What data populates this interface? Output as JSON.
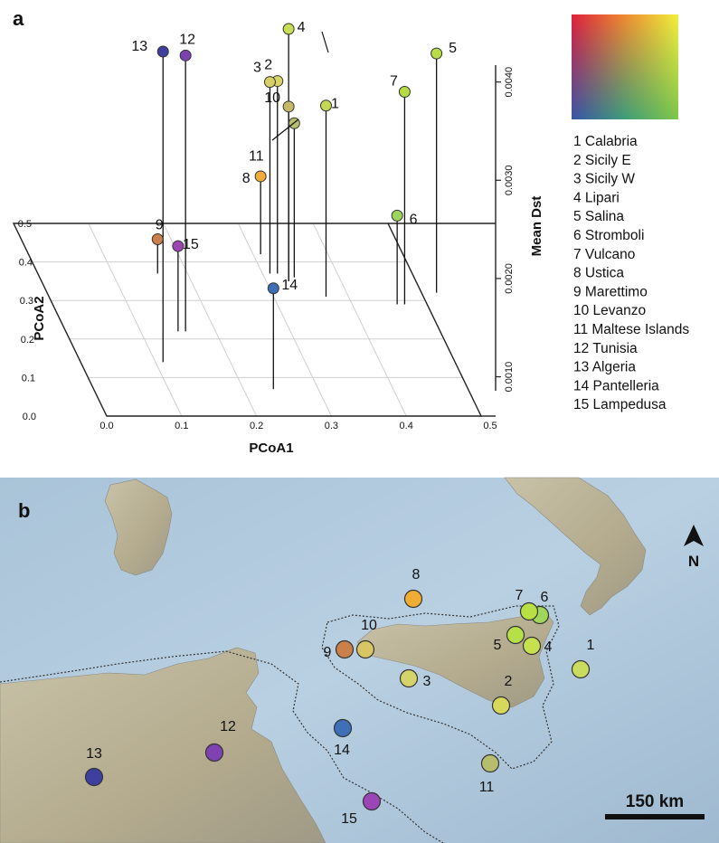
{
  "panel_a_label": "a",
  "panel_b_label": "b",
  "chart_data": {
    "type": "scatter",
    "projection": "3d",
    "xlabel": "PCoA1",
    "ylabel": "PCoA2",
    "zlabel": "Mean Dst",
    "xlim": [
      0.0,
      0.5
    ],
    "ylim": [
      0.0,
      0.5
    ],
    "zlim": [
      0.0006,
      0.0045
    ],
    "x_ticks": [
      "0.0",
      "0.1",
      "0.2",
      "0.3",
      "0.4",
      "0.5"
    ],
    "y_ticks": [
      "0.0",
      "0.1",
      "0.2",
      "0.3",
      "0.4",
      "0.5"
    ],
    "z_ticks": [
      "0.0010",
      "0.0020",
      "0.0030",
      "0.0040"
    ],
    "grid": true,
    "legend_position": "right",
    "points": [
      {
        "id": "1",
        "x": 0.37,
        "y": 0.31,
        "z": 0.00376,
        "color": "#c4d951"
      },
      {
        "id": "2",
        "x": 0.32,
        "y": 0.37,
        "z": 0.00401,
        "color": "#d8d467"
      },
      {
        "id": "3",
        "x": 0.31,
        "y": 0.37,
        "z": 0.004,
        "color": "#d4d066"
      },
      {
        "id": "4",
        "x": 0.33,
        "y": 0.35,
        "z": 0.00454,
        "color": "#c9dd55"
      },
      {
        "id": "5",
        "x": 0.52,
        "y": 0.32,
        "z": 0.00429,
        "color": "#b8dc4a"
      },
      {
        "id": "6",
        "x": 0.46,
        "y": 0.29,
        "z": 0.00264,
        "color": "#9fd45a"
      },
      {
        "id": "7",
        "x": 0.47,
        "y": 0.29,
        "z": 0.0039,
        "color": "#b4dc44"
      },
      {
        "id": "8",
        "x": 0.31,
        "y": 0.42,
        "z": 0.00304,
        "color": "#f0ad37"
      },
      {
        "id": "9",
        "x": 0.16,
        "y": 0.37,
        "z": 0.0024,
        "color": "#c9804c"
      },
      {
        "id": "10",
        "x": 0.33,
        "y": 0.35,
        "z": 0.00375,
        "color": "#c4b967"
      },
      {
        "id": "11",
        "x": 0.34,
        "y": 0.36,
        "z": 0.00358,
        "color": "#b6bf6c"
      },
      {
        "id": "12",
        "x": 0.16,
        "y": 0.22,
        "z": 0.00427,
        "color": "#7b42b0"
      },
      {
        "id": "13",
        "x": 0.11,
        "y": 0.14,
        "z": 0.00431,
        "color": "#3f3f9e"
      },
      {
        "id": "14",
        "x": 0.24,
        "y": 0.07,
        "z": 0.0019,
        "color": "#3d6fb5"
      },
      {
        "id": "15",
        "x": 0.15,
        "y": 0.22,
        "z": 0.00233,
        "color": "#9c45b5"
      }
    ],
    "legend": [
      "1 Calabria",
      "2 Sicily E",
      "3 Sicily W",
      "4 Lipari",
      "5 Salina",
      "6 Stromboli",
      "7 Vulcano",
      "8 Ustica",
      "9 Marettimo",
      "10 Levanzo",
      "11 Maltese Islands",
      "12 Tunisia",
      "13 Algeria",
      "14 Pantelleria",
      "15 Lampedusa"
    ]
  },
  "map": {
    "north_label": "N",
    "scale_label": "150 km",
    "sites": [
      {
        "id": "1",
        "color": "#c9dc5e"
      },
      {
        "id": "2",
        "color": "#d6d85c"
      },
      {
        "id": "3",
        "color": "#d4d46a"
      },
      {
        "id": "4",
        "color": "#c6e04e"
      },
      {
        "id": "5",
        "color": "#b6df48"
      },
      {
        "id": "6",
        "color": "#9fd75a"
      },
      {
        "id": "7",
        "color": "#b8df44"
      },
      {
        "id": "8",
        "color": "#f0ad35"
      },
      {
        "id": "9",
        "color": "#c9804b"
      },
      {
        "id": "10",
        "color": "#d8c563"
      },
      {
        "id": "11",
        "color": "#b6bd6d"
      },
      {
        "id": "12",
        "color": "#8041b3"
      },
      {
        "id": "13",
        "color": "#3f3f9f"
      },
      {
        "id": "14",
        "color": "#3e70b8"
      },
      {
        "id": "15",
        "color": "#9c45b6"
      }
    ]
  }
}
